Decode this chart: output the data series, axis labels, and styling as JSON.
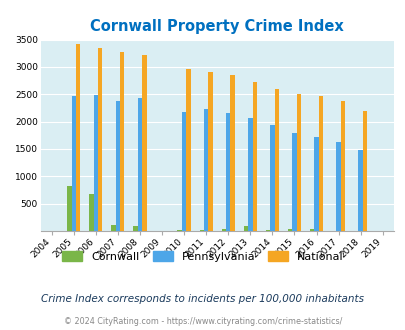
{
  "title": "Cornwall Property Crime Index",
  "years": [
    2004,
    2005,
    2006,
    2007,
    2008,
    2009,
    2010,
    2011,
    2012,
    2013,
    2014,
    2015,
    2016,
    2017,
    2018,
    2019
  ],
  "cornwall": [
    0,
    820,
    680,
    110,
    90,
    0,
    20,
    20,
    30,
    100,
    20,
    40,
    30,
    0,
    0,
    0
  ],
  "pennsylvania": [
    0,
    2460,
    2480,
    2380,
    2440,
    0,
    2170,
    2240,
    2160,
    2060,
    1940,
    1800,
    1720,
    1630,
    1490,
    0
  ],
  "national": [
    0,
    3420,
    3340,
    3270,
    3210,
    0,
    2960,
    2900,
    2860,
    2720,
    2600,
    2500,
    2470,
    2380,
    2200,
    0
  ],
  "cornwall_color": "#7ab648",
  "pennsylvania_color": "#4da6e8",
  "national_color": "#f5a623",
  "bg_color": "#daeef3",
  "title_color": "#0070c0",
  "ylim": [
    0,
    3500
  ],
  "yticks": [
    0,
    500,
    1000,
    1500,
    2000,
    2500,
    3000,
    3500
  ],
  "subtitle": "Crime Index corresponds to incidents per 100,000 inhabitants",
  "footer": "© 2024 CityRating.com - https://www.cityrating.com/crime-statistics/",
  "subtitle_color": "#1a3a5c",
  "footer_color": "#888888"
}
